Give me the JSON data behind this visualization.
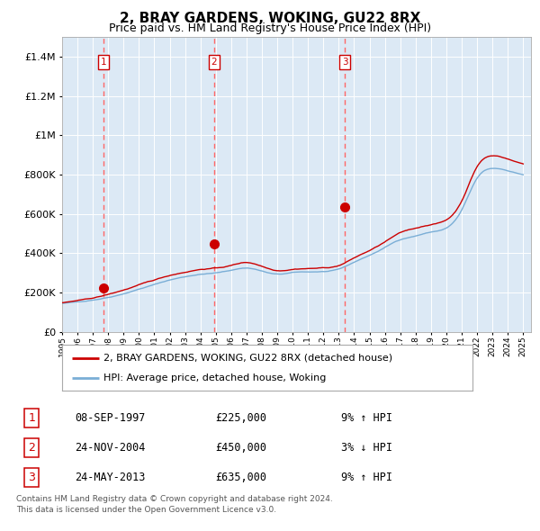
{
  "title": "2, BRAY GARDENS, WOKING, GU22 8RX",
  "subtitle": "Price paid vs. HM Land Registry's House Price Index (HPI)",
  "hpi_label": "HPI: Average price, detached house, Woking",
  "property_label": "2, BRAY GARDENS, WOKING, GU22 8RX (detached house)",
  "footer1": "Contains HM Land Registry data © Crown copyright and database right 2024.",
  "footer2": "This data is licensed under the Open Government Licence v3.0.",
  "transactions": [
    {
      "num": 1,
      "date": "08-SEP-1997",
      "price": 225000,
      "pct": "9%",
      "dir": "↑",
      "x": 1997.69
    },
    {
      "num": 2,
      "date": "24-NOV-2004",
      "price": 450000,
      "pct": "3%",
      "dir": "↓",
      "x": 2004.9
    },
    {
      "num": 3,
      "date": "24-MAY-2013",
      "price": 635000,
      "pct": "9%",
      "dir": "↑",
      "x": 2013.4
    }
  ],
  "ylim": [
    0,
    1500000
  ],
  "xlim_start": 1995.0,
  "xlim_end": 2025.5,
  "plot_bg": "#dce9f5",
  "hpi_color": "#7aaed6",
  "property_color": "#cc0000",
  "dashed_line_color": "#ff6666",
  "grid_color": "#ffffff",
  "title_fontsize": 11,
  "subtitle_fontsize": 9
}
